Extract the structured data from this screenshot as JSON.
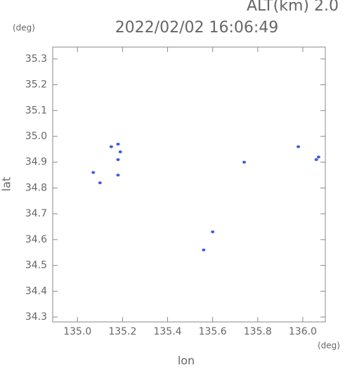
{
  "chart_data": {
    "type": "scatter",
    "title": "2022/02/02 16:06:49",
    "subtitle": "ALT(km) 2.0",
    "x_unit": "(deg)",
    "y_unit": "(deg)",
    "x_label": "lon",
    "y_label": "lat",
    "color": "#3a5ce0",
    "x": [
      135.07,
      135.1,
      135.15,
      135.18,
      135.19,
      135.18,
      135.18,
      135.56,
      135.6,
      135.74,
      135.98,
      136.06,
      136.07
    ],
    "values": [
      34.86,
      34.82,
      34.96,
      34.97,
      34.94,
      34.91,
      34.85,
      34.56,
      34.63,
      34.9,
      34.96,
      34.91,
      34.92
    ],
    "xlim": [
      134.89,
      136.1
    ],
    "ylim": [
      34.281,
      35.346
    ],
    "xticks": [
      {
        "value": 135.0,
        "label": "135.0"
      },
      135.2,
      135.4,
      135.6,
      135.8,
      {
        "value": 136.0,
        "label": "136.0"
      }
    ],
    "yticks": [
      34.3,
      34.4,
      34.5,
      34.6,
      34.7,
      34.8,
      34.9,
      {
        "value": 35.0,
        "label": "35.0"
      },
      35.1,
      35.2,
      35.3
    ]
  }
}
